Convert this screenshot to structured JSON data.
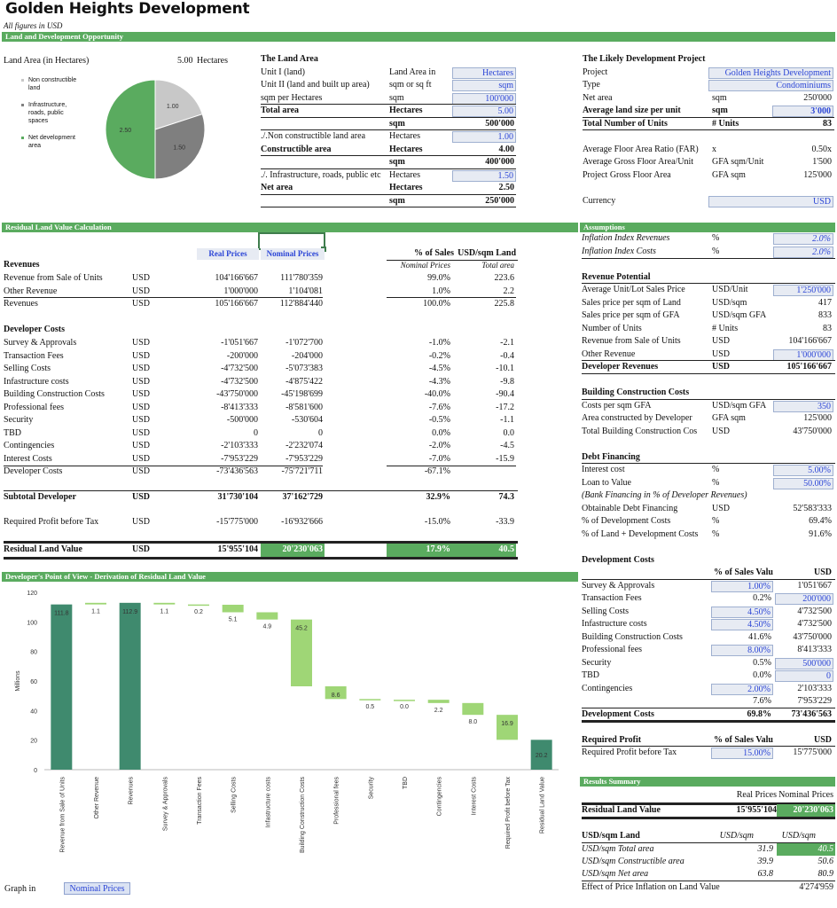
{
  "header": {
    "title": "Golden Heights Development",
    "subtitle": "All figures in USD"
  },
  "sections": {
    "land": "Land and Development Opportunity",
    "residual": "Residual Land Value Calculation",
    "assumptions": "Assumptions",
    "waterfall": "Developer's Point of View - Derivation of Residual Land Value",
    "results": "Results Summary"
  },
  "pie": {
    "label": "Land Area (in Hectares)",
    "total": "5.00",
    "unit": "Hectares",
    "legend": [
      "Non constructible land",
      "Infrastructure, roads, public spaces",
      "Net development area"
    ],
    "values": [
      1.0,
      1.5,
      2.5
    ],
    "value_labels": [
      "1.00",
      "1.50",
      "2.50"
    ],
    "colors": [
      "#c8c8c8",
      "#7f7f7f",
      "#5aab5f"
    ]
  },
  "land_area": {
    "title": "The Land Area",
    "rows": [
      {
        "label": "Unit I (land)",
        "unit": "Land Area in",
        "value": "Hectares",
        "input": true
      },
      {
        "label": "Unit II (land and built up area)",
        "unit": "sqm or sq ft",
        "value": "sqm",
        "input": true
      },
      {
        "label": "sqm per Hectares",
        "unit": "sqm",
        "value": "100'000",
        "input": true
      },
      {
        "label": "Total area",
        "unit": "Hectares",
        "value": "5.00",
        "input": true,
        "bold": true
      },
      {
        "label": "",
        "unit": "sqm",
        "value": "500'000",
        "bold": true
      },
      {
        "label": "./.Non constructible land area",
        "unit": "Hectares",
        "value": "1.00",
        "input": true
      },
      {
        "label": "Constructible area",
        "unit": "Hectares",
        "value": "4.00",
        "bold": true
      },
      {
        "label": "",
        "unit": "sqm",
        "value": "400'000",
        "bold": true
      },
      {
        "label": "./. Infrastructure, roads, public etc",
        "unit": "Hectares",
        "value": "1.50",
        "input": true
      },
      {
        "label": "Net area",
        "unit": "Hectares",
        "value": "2.50",
        "bold": true
      },
      {
        "label": "",
        "unit": "sqm",
        "value": "250'000",
        "bold": true
      }
    ]
  },
  "project": {
    "title": "The Likely Development Project",
    "rows": [
      {
        "label": "Project",
        "unit": "",
        "value": "Golden Heights Development",
        "input": true
      },
      {
        "label": "Type",
        "unit": "",
        "value": "Condominiums",
        "input": true
      },
      {
        "label": "Net area",
        "unit": "sqm",
        "value": "250'000"
      },
      {
        "label": "Average land size per unit",
        "unit": "sqm",
        "value": "3'000",
        "input": true,
        "bold": true
      },
      {
        "label": "Total Number of Units",
        "unit": "# Units",
        "value": "83",
        "bold": true
      },
      {
        "label": "",
        "unit": "",
        "value": ""
      },
      {
        "label": "Average Floor Area Ratio (FAR)",
        "unit": "x",
        "value": "0.50x"
      },
      {
        "label": "Average Gross Floor Area/Unit",
        "unit": "GFA sqm/Unit",
        "value": "1'500"
      },
      {
        "label": "Project Gross Floor Area",
        "unit": "GFA sqm",
        "value": "125'000"
      },
      {
        "label": "",
        "unit": "",
        "value": ""
      },
      {
        "label": "Currency",
        "unit": "",
        "value": "USD",
        "input": true
      }
    ]
  },
  "residual": {
    "col_real": "Real Prices",
    "col_nominal": "Nominal Prices",
    "col_pct": "% of Sales",
    "col_sqm": "USD/sqm Land",
    "sub_pct": "Nominal Prices",
    "sub_sqm": "Total area",
    "revenues_title": "Revenues",
    "revenues": [
      {
        "label": "Revenue from Sale of Units",
        "cur": "USD",
        "real": "104'166'667",
        "nom": "111'780'359",
        "pct": "99.0%",
        "sqm": "223.6"
      },
      {
        "label": "Other Revenue",
        "cur": "USD",
        "real": "1'000'000",
        "nom": "1'104'081",
        "pct": "1.0%",
        "sqm": "2.2"
      },
      {
        "label": "Revenues",
        "cur": "USD",
        "real": "105'166'667",
        "nom": "112'884'440",
        "pct": "100.0%",
        "sqm": "225.8"
      }
    ],
    "costs_title": "Developer Costs",
    "costs": [
      {
        "label": "Survey & Approvals",
        "cur": "USD",
        "real": "-1'051'667",
        "nom": "-1'072'700",
        "pct": "-1.0%",
        "sqm": "-2.1"
      },
      {
        "label": "Transaction Fees",
        "cur": "USD",
        "real": "-200'000",
        "nom": "-204'000",
        "pct": "-0.2%",
        "sqm": "-0.4"
      },
      {
        "label": "Selling Costs",
        "cur": "USD",
        "real": "-4'732'500",
        "nom": "-5'073'383",
        "pct": "-4.5%",
        "sqm": "-10.1"
      },
      {
        "label": "Infastructure costs",
        "cur": "USD",
        "real": "-4'732'500",
        "nom": "-4'875'422",
        "pct": "-4.3%",
        "sqm": "-9.8"
      },
      {
        "label": "Building Construction Costs",
        "cur": "USD",
        "real": "-43'750'000",
        "nom": "-45'198'699",
        "pct": "-40.0%",
        "sqm": "-90.4"
      },
      {
        "label": "Professional fees",
        "cur": "USD",
        "real": "-8'413'333",
        "nom": "-8'581'600",
        "pct": "-7.6%",
        "sqm": "-17.2"
      },
      {
        "label": "Security",
        "cur": "USD",
        "real": "-500'000",
        "nom": "-530'604",
        "pct": "-0.5%",
        "sqm": "-1.1"
      },
      {
        "label": "TBD",
        "cur": "USD",
        "real": "0",
        "nom": "0",
        "pct": "0.0%",
        "sqm": "0.0"
      },
      {
        "label": "Contingencies",
        "cur": "USD",
        "real": "-2'103'333",
        "nom": "-2'232'074",
        "pct": "-2.0%",
        "sqm": "-4.5"
      },
      {
        "label": "Interest Costs",
        "cur": "USD",
        "real": "-7'953'229",
        "nom": "-7'953'229",
        "pct": "-7.0%",
        "sqm": "-15.9"
      },
      {
        "label": "Developer Costs",
        "cur": "USD",
        "real": "-73'436'563",
        "nom": "-75'721'711",
        "pct": "-67.1%",
        "sqm": ""
      }
    ],
    "subtotal": {
      "label": "Subtotal Developer",
      "cur": "USD",
      "real": "31'730'104",
      "nom": "37'162'729",
      "pct": "32.9%",
      "sqm": "74.3"
    },
    "profit": {
      "label": "Required Profit before Tax",
      "cur": "USD",
      "real": "-15'775'000",
      "nom": "-16'932'666",
      "pct": "-15.0%",
      "sqm": "-33.9"
    },
    "rlv": {
      "label": "Residual Land Value",
      "cur": "USD",
      "real": "15'955'104",
      "nom": "20'230'063",
      "pct": "17.9%",
      "sqm": "40.5"
    }
  },
  "assumptions": {
    "inflation": [
      {
        "label": "Inflation Index Revenues",
        "unit": "%",
        "value": "2.0%"
      },
      {
        "label": "Inflation Index Costs",
        "unit": "%",
        "value": "2.0%"
      }
    ],
    "revenue_title": "Revenue Potential",
    "revenue": [
      {
        "label": "Average Unit/Lot Sales Price",
        "unit": "USD/Unit",
        "value": "1'250'000",
        "input": true
      },
      {
        "label": "Sales price per sqm of Land",
        "unit": "USD/sqm",
        "value": "417"
      },
      {
        "label": "Sales price per sqm of GFA",
        "unit": "USD/sqm GFA",
        "value": "833"
      },
      {
        "label": "Number of Units",
        "unit": "# Units",
        "value": "83"
      },
      {
        "label": "Revenue from Sale of Units",
        "unit": "USD",
        "value": "104'166'667"
      },
      {
        "label": "Other Revenue",
        "unit": "USD",
        "value": "1'000'000",
        "input": true
      },
      {
        "label": "Developer Revenues",
        "unit": "USD",
        "value": "105'166'667",
        "bold": true
      }
    ],
    "building_title": "Building Construction Costs",
    "building": [
      {
        "label": "Costs per sqm GFA",
        "unit": "USD/sqm GFA",
        "value": "350",
        "input": true
      },
      {
        "label": "Area constructed by Developer",
        "unit": "GFA sqm",
        "value": "125'000"
      },
      {
        "label": "Total Building Construction Cos",
        "unit": "USD",
        "value": "43'750'000"
      }
    ],
    "debt_title": "Debt Financing",
    "debt": [
      {
        "label": "Interest cost",
        "unit": "%",
        "value": "5.00%",
        "input": true
      },
      {
        "label": "Loan to Value",
        "unit": "%",
        "value": "50.00%",
        "input": true
      },
      {
        "label": "(Bank Financing in % of Developer Revenues)",
        "unit": "",
        "value": "",
        "italic": true
      },
      {
        "label": "Obtainable Debt Financing",
        "unit": "USD",
        "value": "52'583'333"
      },
      {
        "label": "% of Development Costs",
        "unit": "%",
        "value": "69.4%"
      },
      {
        "label": "% of Land + Development Costs",
        "unit": "%",
        "value": "91.6%"
      }
    ],
    "devcost_title": "Development Costs",
    "devcost_col1": "% of Sales Valu",
    "devcost_col2": "USD",
    "devcost": [
      {
        "label": "Survey & Approvals",
        "pct": "1.00%",
        "usd": "1'051'667",
        "pi": true
      },
      {
        "label": "Transaction Fees",
        "pct": "0.2%",
        "usd": "200'000",
        "ui": true
      },
      {
        "label": "Selling Costs",
        "pct": "4.50%",
        "usd": "4'732'500",
        "pi": true
      },
      {
        "label": "Infastructure costs",
        "pct": "4.50%",
        "usd": "4'732'500",
        "pi": true
      },
      {
        "label": "Building Construction Costs",
        "pct": "41.6%",
        "usd": "43'750'000"
      },
      {
        "label": "Professional fees",
        "pct": "8.00%",
        "usd": "8'413'333",
        "pi": true
      },
      {
        "label": "Security",
        "pct": "0.5%",
        "usd": "500'000",
        "ui": true
      },
      {
        "label": "TBD",
        "pct": "0.0%",
        "usd": "0",
        "ui": true
      },
      {
        "label": "Contingencies",
        "pct": "2.00%",
        "usd": "2'103'333",
        "pi": true
      },
      {
        "label": "",
        "pct": "7.6%",
        "usd": "7'953'229"
      }
    ],
    "devcost_total": {
      "label": "Development Costs",
      "pct": "69.8%",
      "usd": "73'436'563"
    },
    "profit_title": "Required Profit",
    "profit_col1": "% of Sales Valu",
    "profit_col2": "USD",
    "profit": {
      "label": "Required Profit before Tax",
      "pct": "15.00%",
      "usd": "15'775'000"
    }
  },
  "results": {
    "col_real": "Real Prices",
    "col_nominal": "Nominal Prices",
    "rlv": {
      "label": "Residual Land Value",
      "real": "15'955'104",
      "nom": "20'230'063"
    },
    "sqm_title": "USD/sqm Land",
    "sqm_unit1": "USD/sqm",
    "sqm_unit2": "USD/sqm",
    "sqm": [
      {
        "label": "USD/sqm Total area",
        "real": "31.9",
        "nom": "40.5"
      },
      {
        "label": "USD/sqm Constructible area",
        "real": "39.9",
        "nom": "50.6"
      },
      {
        "label": "USD/sqm Net area",
        "real": "63.8",
        "nom": "80.9"
      }
    ],
    "inflation_effect": {
      "label": "Effect of Price Inflation on Land Value",
      "value": "4'274'959"
    }
  },
  "graph_in": {
    "label": "Graph in",
    "value": "Nominal Prices"
  },
  "chart_data": {
    "type": "bar",
    "subtype": "waterfall",
    "ylabel": "Millions",
    "ylim": [
      0,
      120
    ],
    "yticks": [
      0,
      20,
      40,
      60,
      80,
      100,
      120
    ],
    "categories": [
      "Revenue from Sale of Units",
      "Other Revenue",
      "Revenues",
      "Survey & Approvals",
      "Transaction Fees",
      "Selling Costs",
      "Infastructure costs",
      "Building Construction Costs",
      "Professional fees",
      "Security",
      "TBD",
      "Contingencies",
      "Interest Costs",
      "Required Profit before Tax",
      "Residual Land Value"
    ],
    "bars": [
      {
        "start": 0,
        "end": 111.8,
        "label": "111.8",
        "kind": "total"
      },
      {
        "start": 111.8,
        "end": 112.9,
        "label": "1.1",
        "kind": "delta"
      },
      {
        "start": 0,
        "end": 112.9,
        "label": "112.9",
        "kind": "total"
      },
      {
        "start": 111.8,
        "end": 112.9,
        "label": "1.1",
        "kind": "delta"
      },
      {
        "start": 111.6,
        "end": 111.8,
        "label": "0.2",
        "kind": "delta"
      },
      {
        "start": 106.5,
        "end": 111.6,
        "label": "5.1",
        "kind": "delta"
      },
      {
        "start": 101.6,
        "end": 106.5,
        "label": "4.9",
        "kind": "delta"
      },
      {
        "start": 56.4,
        "end": 101.6,
        "label": "45.2",
        "kind": "delta"
      },
      {
        "start": 47.8,
        "end": 56.4,
        "label": "8.6",
        "kind": "delta"
      },
      {
        "start": 47.3,
        "end": 47.8,
        "label": "0.5",
        "kind": "delta"
      },
      {
        "start": 47.3,
        "end": 47.3,
        "label": "0.0",
        "kind": "delta"
      },
      {
        "start": 45.1,
        "end": 47.3,
        "label": "2.2",
        "kind": "delta"
      },
      {
        "start": 37.1,
        "end": 45.1,
        "label": "8.0",
        "kind": "delta"
      },
      {
        "start": 20.2,
        "end": 37.1,
        "label": "16.9",
        "kind": "delta"
      },
      {
        "start": 0,
        "end": 20.2,
        "label": "20.2",
        "kind": "total"
      }
    ],
    "colors": {
      "delta": "#9fd676",
      "total": "#3f8a6e"
    }
  }
}
